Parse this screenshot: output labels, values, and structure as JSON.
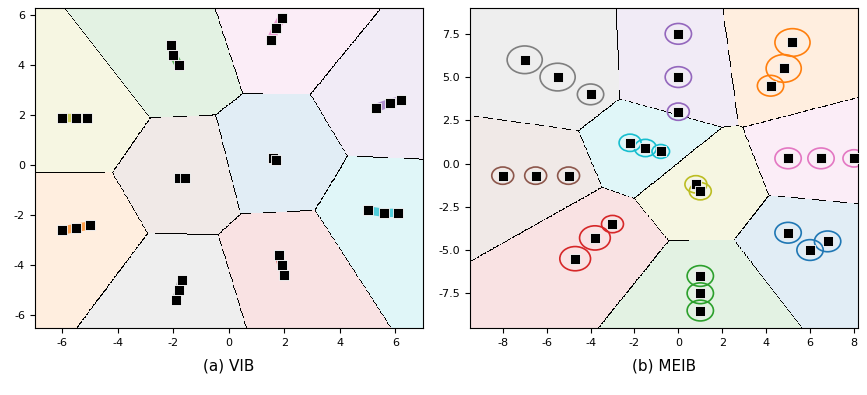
{
  "chart_data": [
    {
      "type": "scatter",
      "title": "(a) VIB",
      "xlim": [
        -7,
        7
      ],
      "ylim": [
        -6.5,
        6.3
      ],
      "xticks": [
        -6,
        -4,
        -2,
        0,
        2,
        4,
        6
      ],
      "yticks": [
        -6,
        -4,
        -2,
        0,
        2,
        4,
        6
      ],
      "marker": "s",
      "series": [
        {
          "color": "#2ca02c",
          "x": [
            -2.1,
            -2.0,
            -1.8
          ],
          "y": [
            4.8,
            4.4,
            4.0
          ]
        },
        {
          "color": "#e377c2",
          "x": [
            1.9,
            1.7,
            1.5
          ],
          "y": [
            5.9,
            5.5,
            5.0
          ]
        },
        {
          "color": "#9467bd",
          "x": [
            5.3,
            5.8,
            6.2
          ],
          "y": [
            2.3,
            2.5,
            2.6
          ]
        },
        {
          "color": "#17becf",
          "x": [
            5.0,
            5.6,
            6.1
          ],
          "y": [
            -1.8,
            -1.9,
            -1.9
          ]
        },
        {
          "color": "#d62728",
          "x": [
            1.8,
            1.9,
            2.0
          ],
          "y": [
            -3.6,
            -4.0,
            -4.4
          ]
        },
        {
          "color": "#7f7f7f",
          "x": [
            -1.7,
            -1.8,
            -1.9
          ],
          "y": [
            -4.6,
            -5.0,
            -5.4
          ]
        },
        {
          "color": "#ff7f0e",
          "x": [
            -6.0,
            -5.5,
            -5.0
          ],
          "y": [
            -2.6,
            -2.5,
            -2.4
          ]
        },
        {
          "color": "#bcbd22",
          "x": [
            -6.0,
            -5.5,
            -5.1
          ],
          "y": [
            1.9,
            1.9,
            1.9
          ]
        },
        {
          "color": "#8c564b",
          "x": [
            -1.8,
            -1.6
          ],
          "y": [
            -0.5,
            -0.5
          ]
        },
        {
          "color": "#1f77b4",
          "x": [
            1.6,
            1.7
          ],
          "y": [
            0.3,
            0.2
          ]
        }
      ]
    },
    {
      "type": "scatter",
      "title": "(b) MEIB",
      "xlim": [
        -9.5,
        8.2
      ],
      "ylim": [
        -9.5,
        9
      ],
      "xticks": [
        -8,
        -6,
        -4,
        -2,
        0,
        2,
        4,
        6,
        8
      ],
      "yticks": [
        -7.5,
        -5.0,
        -2.5,
        0.0,
        2.5,
        5.0,
        7.5
      ],
      "marker": "s",
      "series": [
        {
          "color": "#7f7f7f",
          "x": [
            -7.0,
            -5.5,
            -4.0
          ],
          "y": [
            6.0,
            5.0,
            4.0
          ],
          "sizes": [
            0.8,
            0.8,
            0.6
          ]
        },
        {
          "color": "#9467bd",
          "x": [
            0.0,
            0.0,
            0.0
          ],
          "y": [
            7.5,
            5.0,
            3.0
          ],
          "sizes": [
            0.6,
            0.6,
            0.5
          ]
        },
        {
          "color": "#ff7f0e",
          "x": [
            5.2,
            4.8,
            4.2
          ],
          "y": [
            7.0,
            5.5,
            4.5
          ],
          "sizes": [
            0.8,
            0.8,
            0.6
          ]
        },
        {
          "color": "#17becf",
          "x": [
            -2.2,
            -1.5,
            -0.8
          ],
          "y": [
            1.2,
            0.9,
            0.7
          ],
          "sizes": [
            0.5,
            0.5,
            0.4
          ]
        },
        {
          "color": "#e377c2",
          "x": [
            5.0,
            6.5,
            8.0
          ],
          "y": [
            0.3,
            0.3,
            0.3
          ],
          "sizes": [
            0.6,
            0.6,
            0.5
          ]
        },
        {
          "color": "#8c564b",
          "x": [
            -8.0,
            -6.5,
            -5.0
          ],
          "y": [
            -0.7,
            -0.7,
            -0.7
          ],
          "sizes": [
            0.5,
            0.5,
            0.5
          ]
        },
        {
          "color": "#bcbd22",
          "x": [
            0.8,
            1.0
          ],
          "y": [
            -1.2,
            -1.6
          ],
          "sizes": [
            0.5,
            0.5
          ]
        },
        {
          "color": "#d62728",
          "x": [
            -3.0,
            -3.8,
            -4.7
          ],
          "y": [
            -3.5,
            -4.3,
            -5.5
          ],
          "sizes": [
            0.5,
            0.7,
            0.7
          ]
        },
        {
          "color": "#2ca02c",
          "x": [
            1.0,
            1.0,
            1.0
          ],
          "y": [
            -6.5,
            -7.5,
            -8.5
          ],
          "sizes": [
            0.6,
            0.6,
            0.6
          ]
        },
        {
          "color": "#1f77b4",
          "x": [
            6.8,
            6.0,
            5.0
          ],
          "y": [
            -4.5,
            -5.0,
            -4.0
          ],
          "sizes": [
            0.6,
            0.6,
            0.6
          ]
        }
      ]
    }
  ]
}
